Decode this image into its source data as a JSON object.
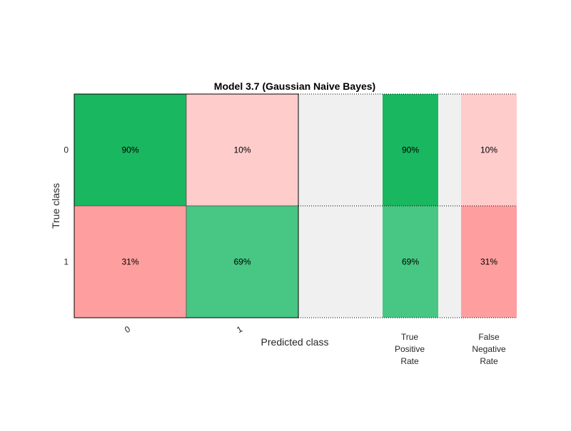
{
  "chart_data": {
    "type": "heatmap",
    "title": "Model 3.7 (Gaussian Naive Bayes)",
    "xlabel": "Predicted class",
    "ylabel": "True class",
    "row_labels": [
      "0",
      "1"
    ],
    "col_labels": [
      "0",
      "1"
    ],
    "cells": [
      [
        "90%",
        "10%"
      ],
      [
        "31%",
        "69%"
      ]
    ],
    "cell_colors": [
      [
        "#19b760",
        "#ffcccc"
      ],
      [
        "#ff9e9e",
        "#47c783"
      ]
    ],
    "summary_columns": [
      {
        "label_lines": [
          "True",
          "Positive",
          "Rate"
        ],
        "values": [
          "90%",
          "69%"
        ],
        "colors": [
          "#19b760",
          "#47c783"
        ]
      },
      {
        "label_lines": [
          "False",
          "Negative",
          "Rate"
        ],
        "values": [
          "10%",
          "31%"
        ],
        "colors": [
          "#ffcccc",
          "#ff9e9e"
        ]
      }
    ],
    "gap_color": "#f0f0f0"
  }
}
